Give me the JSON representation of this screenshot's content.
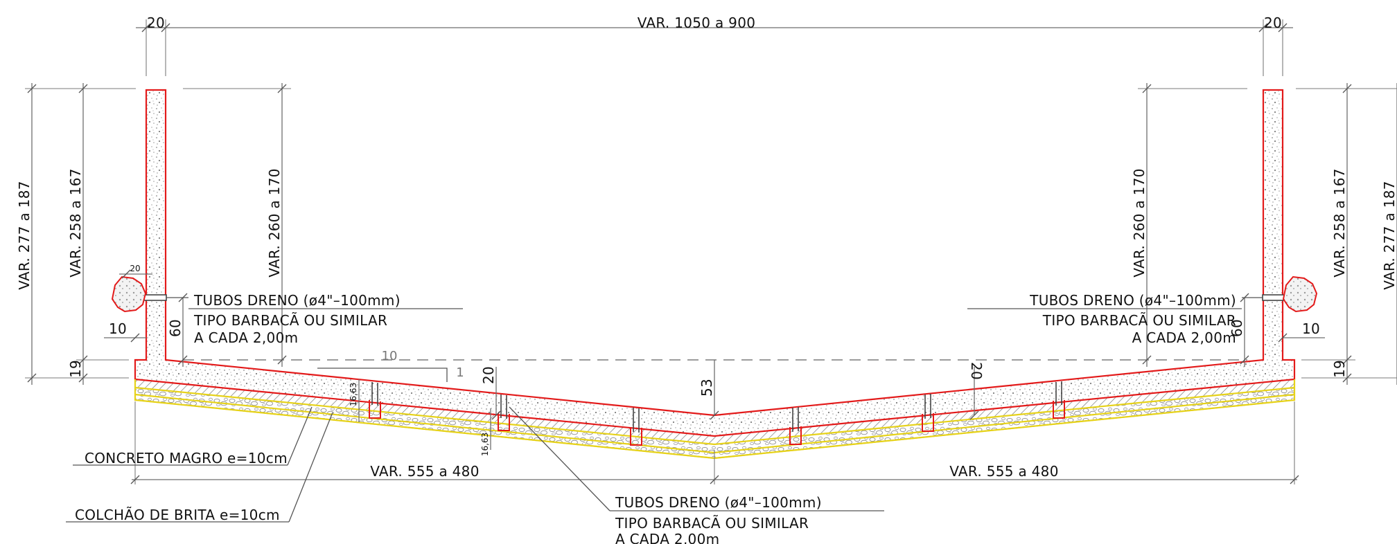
{
  "dimensions": {
    "top_width": "VAR. 1050 a 900",
    "wall_thickness_left": "20",
    "wall_thickness_right": "20",
    "height_outer_left": "VAR. 277 a 187",
    "height_mid_left": "VAR. 258 a 167",
    "height_inner_left": "VAR. 260 a 170",
    "height_inner_right": "VAR. 260 a 170",
    "height_mid_right": "VAR. 258 a 167",
    "height_outer_right": "VAR. 277 a 187",
    "footing_left": "19",
    "footing_right": "19",
    "toe_left": "10",
    "toe_right": "10",
    "drain_height_left": "60",
    "drain_height_right": "60",
    "small_20": "20",
    "slope_run": "10",
    "slope_rise": "1",
    "slab_thickness_left": "20",
    "slab_thickness_right": "20",
    "center_depth": "53",
    "layer_a": "16,63",
    "layer_b": "16,63",
    "bottom_left": "VAR. 555 a 480",
    "bottom_right": "VAR. 555 a 480"
  },
  "notes": {
    "left_drain": [
      "TUBOS DRENO (ø4\"–100mm)",
      "TIPO BARBACÃ OU SIMILAR",
      "A CADA 2,00m"
    ],
    "right_drain": [
      "TUBOS DRENO (ø4\"–100mm)",
      "TIPO BARBACÃ OU SIMILAR",
      "A CADA 2,00m"
    ],
    "bottom_drain": [
      "TUBOS DRENO (ø4\"–100mm)",
      "TIPO BARBACÃ OU SIMILAR",
      "A CADA 2,00m"
    ],
    "lean_concrete": "CONCRETO MAGRO e=10cm",
    "gravel_bed": "COLCHÃO DE BRITA e=10cm"
  },
  "colors": {
    "concrete_outline": "#e31a1a",
    "lean_concrete_outline": "#e6d21a",
    "dimension_lines": "#6e6e6e",
    "text": "#111111"
  }
}
